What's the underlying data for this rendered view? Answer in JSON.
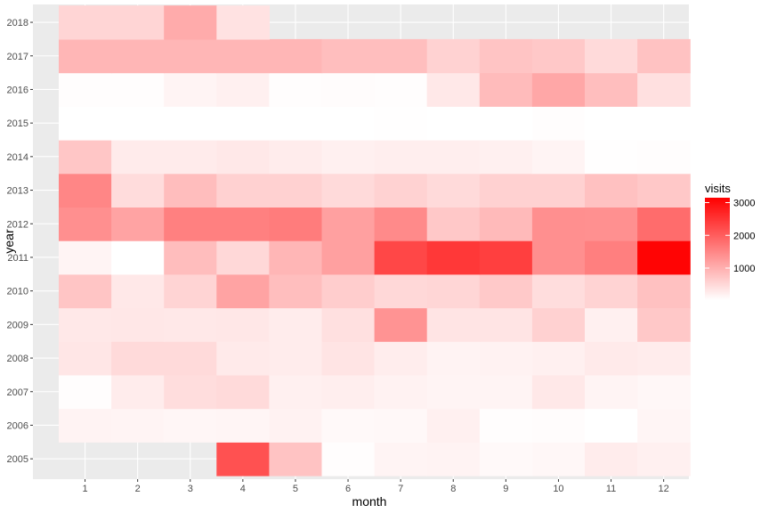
{
  "chart_data": {
    "type": "heatmap",
    "title": "",
    "xlabel": "month",
    "ylabel": "year",
    "x": [
      1,
      2,
      3,
      4,
      5,
      6,
      7,
      8,
      9,
      10,
      11,
      12
    ],
    "y": [
      2005,
      2006,
      2007,
      2008,
      2009,
      2010,
      2011,
      2012,
      2013,
      2014,
      2015,
      2016,
      2017,
      2018
    ],
    "legend": {
      "title": "visits",
      "ticks": [
        1000,
        2000,
        3000
      ],
      "range": [
        20,
        3150
      ],
      "position": "right"
    },
    "grid": true,
    "colors": {
      "low": "#ffffff",
      "high": "#ff0000",
      "panel": "#ebebeb",
      "gridline": "#ffffff"
    },
    "values": [
      [
        null,
        null,
        null,
        2160,
        760,
        50,
        150,
        170,
        90,
        120,
        250,
        200
      ],
      [
        170,
        150,
        130,
        140,
        180,
        90,
        110,
        210,
        50,
        60,
        20,
        140
      ],
      [
        50,
        250,
        440,
        480,
        200,
        230,
        180,
        160,
        160,
        300,
        160,
        120
      ],
      [
        330,
        480,
        470,
        280,
        250,
        350,
        240,
        170,
        180,
        200,
        280,
        250
      ],
      [
        300,
        310,
        300,
        320,
        250,
        400,
        1350,
        350,
        350,
        590,
        200,
        700
      ],
      [
        730,
        300,
        550,
        1150,
        820,
        630,
        500,
        520,
        680,
        440,
        560,
        780
      ],
      [
        150,
        0,
        830,
        500,
        920,
        1180,
        2280,
        2460,
        2380,
        1390,
        1590,
        3100
      ],
      [
        1390,
        1150,
        1580,
        1580,
        1630,
        1190,
        1450,
        690,
        870,
        1400,
        1380,
        1830
      ],
      [
        1500,
        450,
        830,
        590,
        590,
        470,
        570,
        470,
        590,
        590,
        780,
        700
      ],
      [
        720,
        270,
        270,
        300,
        250,
        200,
        230,
        230,
        210,
        160,
        30,
        40
      ],
      [
        20,
        10,
        20,
        20,
        20,
        0,
        30,
        10,
        10,
        50,
        20,
        20
      ],
      [
        50,
        50,
        150,
        200,
        50,
        60,
        50,
        300,
        850,
        1100,
        820,
        400
      ],
      [
        920,
        920,
        920,
        920,
        920,
        820,
        820,
        570,
        740,
        700,
        470,
        770
      ],
      [
        530,
        530,
        1050,
        370,
        null,
        null,
        null,
        null,
        null,
        null,
        null,
        null
      ]
    ]
  }
}
